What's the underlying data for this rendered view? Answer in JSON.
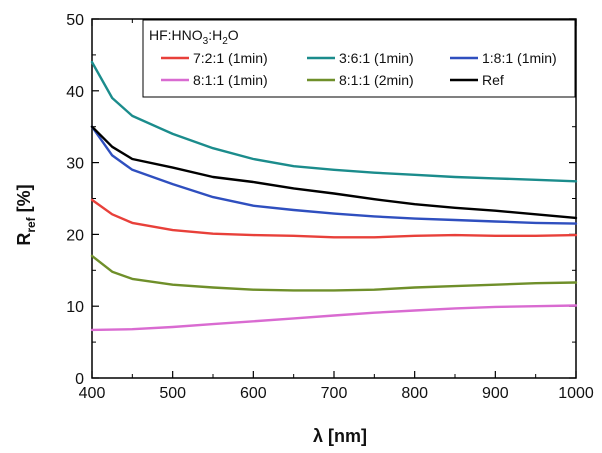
{
  "chart_data": {
    "type": "line",
    "xlabel": "λ [nm]",
    "ylabel_main": "R",
    "ylabel_sub": "ref",
    "ylabel_unit": " [%]",
    "xlim": [
      400,
      1000
    ],
    "ylim": [
      0,
      50
    ],
    "x_ticks": [
      400,
      500,
      600,
      700,
      800,
      900,
      1000
    ],
    "y_ticks": [
      0,
      10,
      20,
      30,
      40,
      50
    ],
    "grid": false,
    "legend": {
      "placement": "top-left",
      "title_parts": [
        "HF:HNO",
        "3",
        ":H",
        "2",
        "O"
      ]
    },
    "series": [
      {
        "name": "7:2:1 (1min)",
        "color": "#e8403a",
        "x": [
          400,
          425,
          450,
          500,
          550,
          600,
          650,
          700,
          750,
          800,
          850,
          900,
          950,
          1000
        ],
        "y": [
          24.8,
          22.8,
          21.6,
          20.6,
          20.1,
          19.9,
          19.8,
          19.6,
          19.6,
          19.8,
          19.9,
          19.8,
          19.8,
          19.9
        ]
      },
      {
        "name": "3:6:1 (1min)",
        "color": "#1b8c8c",
        "x": [
          400,
          425,
          450,
          500,
          550,
          600,
          650,
          700,
          750,
          800,
          850,
          900,
          950,
          1000
        ],
        "y": [
          44.0,
          39.0,
          36.5,
          34.0,
          32.0,
          30.5,
          29.5,
          29.0,
          28.6,
          28.3,
          28.0,
          27.8,
          27.6,
          27.4
        ]
      },
      {
        "name": "1:8:1 (1min)",
        "color": "#2f4fbf",
        "x": [
          400,
          425,
          450,
          500,
          550,
          600,
          650,
          700,
          750,
          800,
          850,
          900,
          950,
          1000
        ],
        "y": [
          35.0,
          31.0,
          29.0,
          27.0,
          25.2,
          24.0,
          23.4,
          22.9,
          22.5,
          22.2,
          22.0,
          21.8,
          21.6,
          21.5
        ]
      },
      {
        "name": "8:1:1 (1min)",
        "color": "#d96bd1",
        "x": [
          400,
          450,
          500,
          550,
          600,
          650,
          700,
          750,
          800,
          850,
          900,
          950,
          1000
        ],
        "y": [
          6.7,
          6.8,
          7.1,
          7.5,
          7.9,
          8.3,
          8.7,
          9.1,
          9.4,
          9.7,
          9.9,
          10.0,
          10.1
        ]
      },
      {
        "name": "8:1:1 (2min)",
        "color": "#6f8f2a",
        "x": [
          400,
          425,
          450,
          500,
          550,
          600,
          650,
          700,
          750,
          800,
          850,
          900,
          950,
          1000
        ],
        "y": [
          17.0,
          14.8,
          13.8,
          13.0,
          12.6,
          12.3,
          12.2,
          12.2,
          12.3,
          12.6,
          12.8,
          13.0,
          13.2,
          13.3
        ]
      },
      {
        "name": "Ref",
        "color": "#000000",
        "x": [
          400,
          425,
          450,
          500,
          550,
          600,
          650,
          700,
          750,
          800,
          850,
          900,
          950,
          1000
        ],
        "y": [
          35.0,
          32.2,
          30.5,
          29.3,
          28.0,
          27.3,
          26.4,
          25.7,
          24.9,
          24.2,
          23.7,
          23.3,
          22.8,
          22.3
        ]
      }
    ]
  }
}
